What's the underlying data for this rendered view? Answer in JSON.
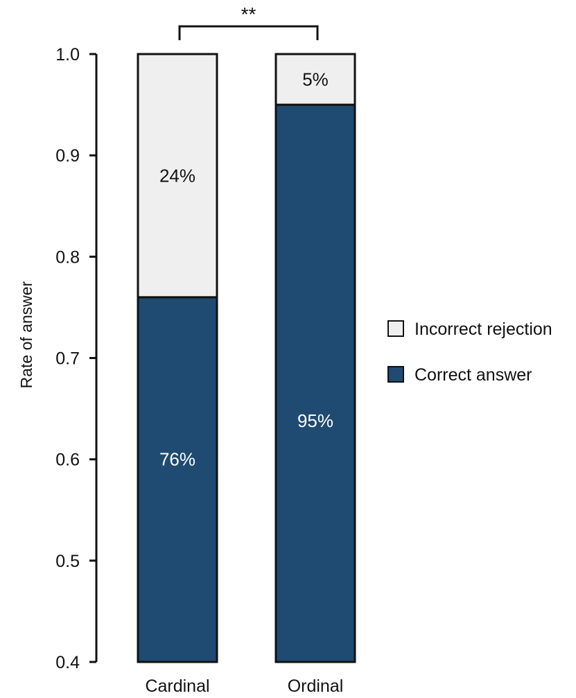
{
  "chart_data": {
    "type": "bar",
    "stacked": true,
    "categories": [
      "Cardinal",
      "Ordinal"
    ],
    "series": [
      {
        "name": "Correct answer",
        "values": [
          0.76,
          0.95
        ],
        "labels": [
          "76%",
          "95%"
        ],
        "color": "#1f4b72",
        "text_color": "#ffffff"
      },
      {
        "name": "Incorrect rejection",
        "values": [
          0.24,
          0.05
        ],
        "labels": [
          "24%",
          "5%"
        ],
        "color": "#efefef",
        "text_color": "#111111"
      }
    ],
    "ylabel": "Rate of answer",
    "xlabel": "",
    "ylim": [
      0.4,
      1.0
    ],
    "yticks": [
      "0.4",
      "0.5",
      "0.6",
      "0.7",
      "0.8",
      "0.9",
      "1.0"
    ],
    "significance": {
      "between": [
        "Cardinal",
        "Ordinal"
      ],
      "label": "**"
    },
    "legend_position": "right",
    "grid": false
  }
}
